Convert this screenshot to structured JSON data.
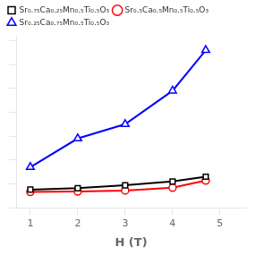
{
  "chart_data": {
    "type": "line",
    "xlabel": "H (T)",
    "x": [
      1,
      2,
      3,
      4,
      4.7
    ],
    "series": [
      {
        "name": "Sr₀.₇₅Ca₀.₂₅Mn₀.₅Ti₀.₅O₃",
        "color": "black",
        "marker": "square",
        "values": [
          3.8,
          4.1,
          4.7,
          5.5,
          6.5
        ]
      },
      {
        "name": "Sr₀.₅Ca₀.₅Mn₀.₅Ti₀.₅O₃",
        "color": "red",
        "marker": "circle",
        "values": [
          3.3,
          3.4,
          3.6,
          4.2,
          5.7
        ]
      },
      {
        "name": "Sr₀.₂₅Ca₀.₇₅Mn₀.₅Ti₀.₅O₃",
        "color": "blue",
        "marker": "triangle",
        "values": [
          8.5,
          14.5,
          17.5,
          24.5,
          33.0
        ]
      }
    ],
    "xlim": [
      0.7,
      5.55
    ],
    "ylim": [
      0,
      36
    ],
    "xticks": [
      1,
      2,
      3,
      4,
      5
    ],
    "yticks": [
      0,
      5,
      10,
      15,
      20,
      25,
      30,
      35
    ],
    "tick_labels": "x",
    "grid": false,
    "legend": "upper left"
  }
}
